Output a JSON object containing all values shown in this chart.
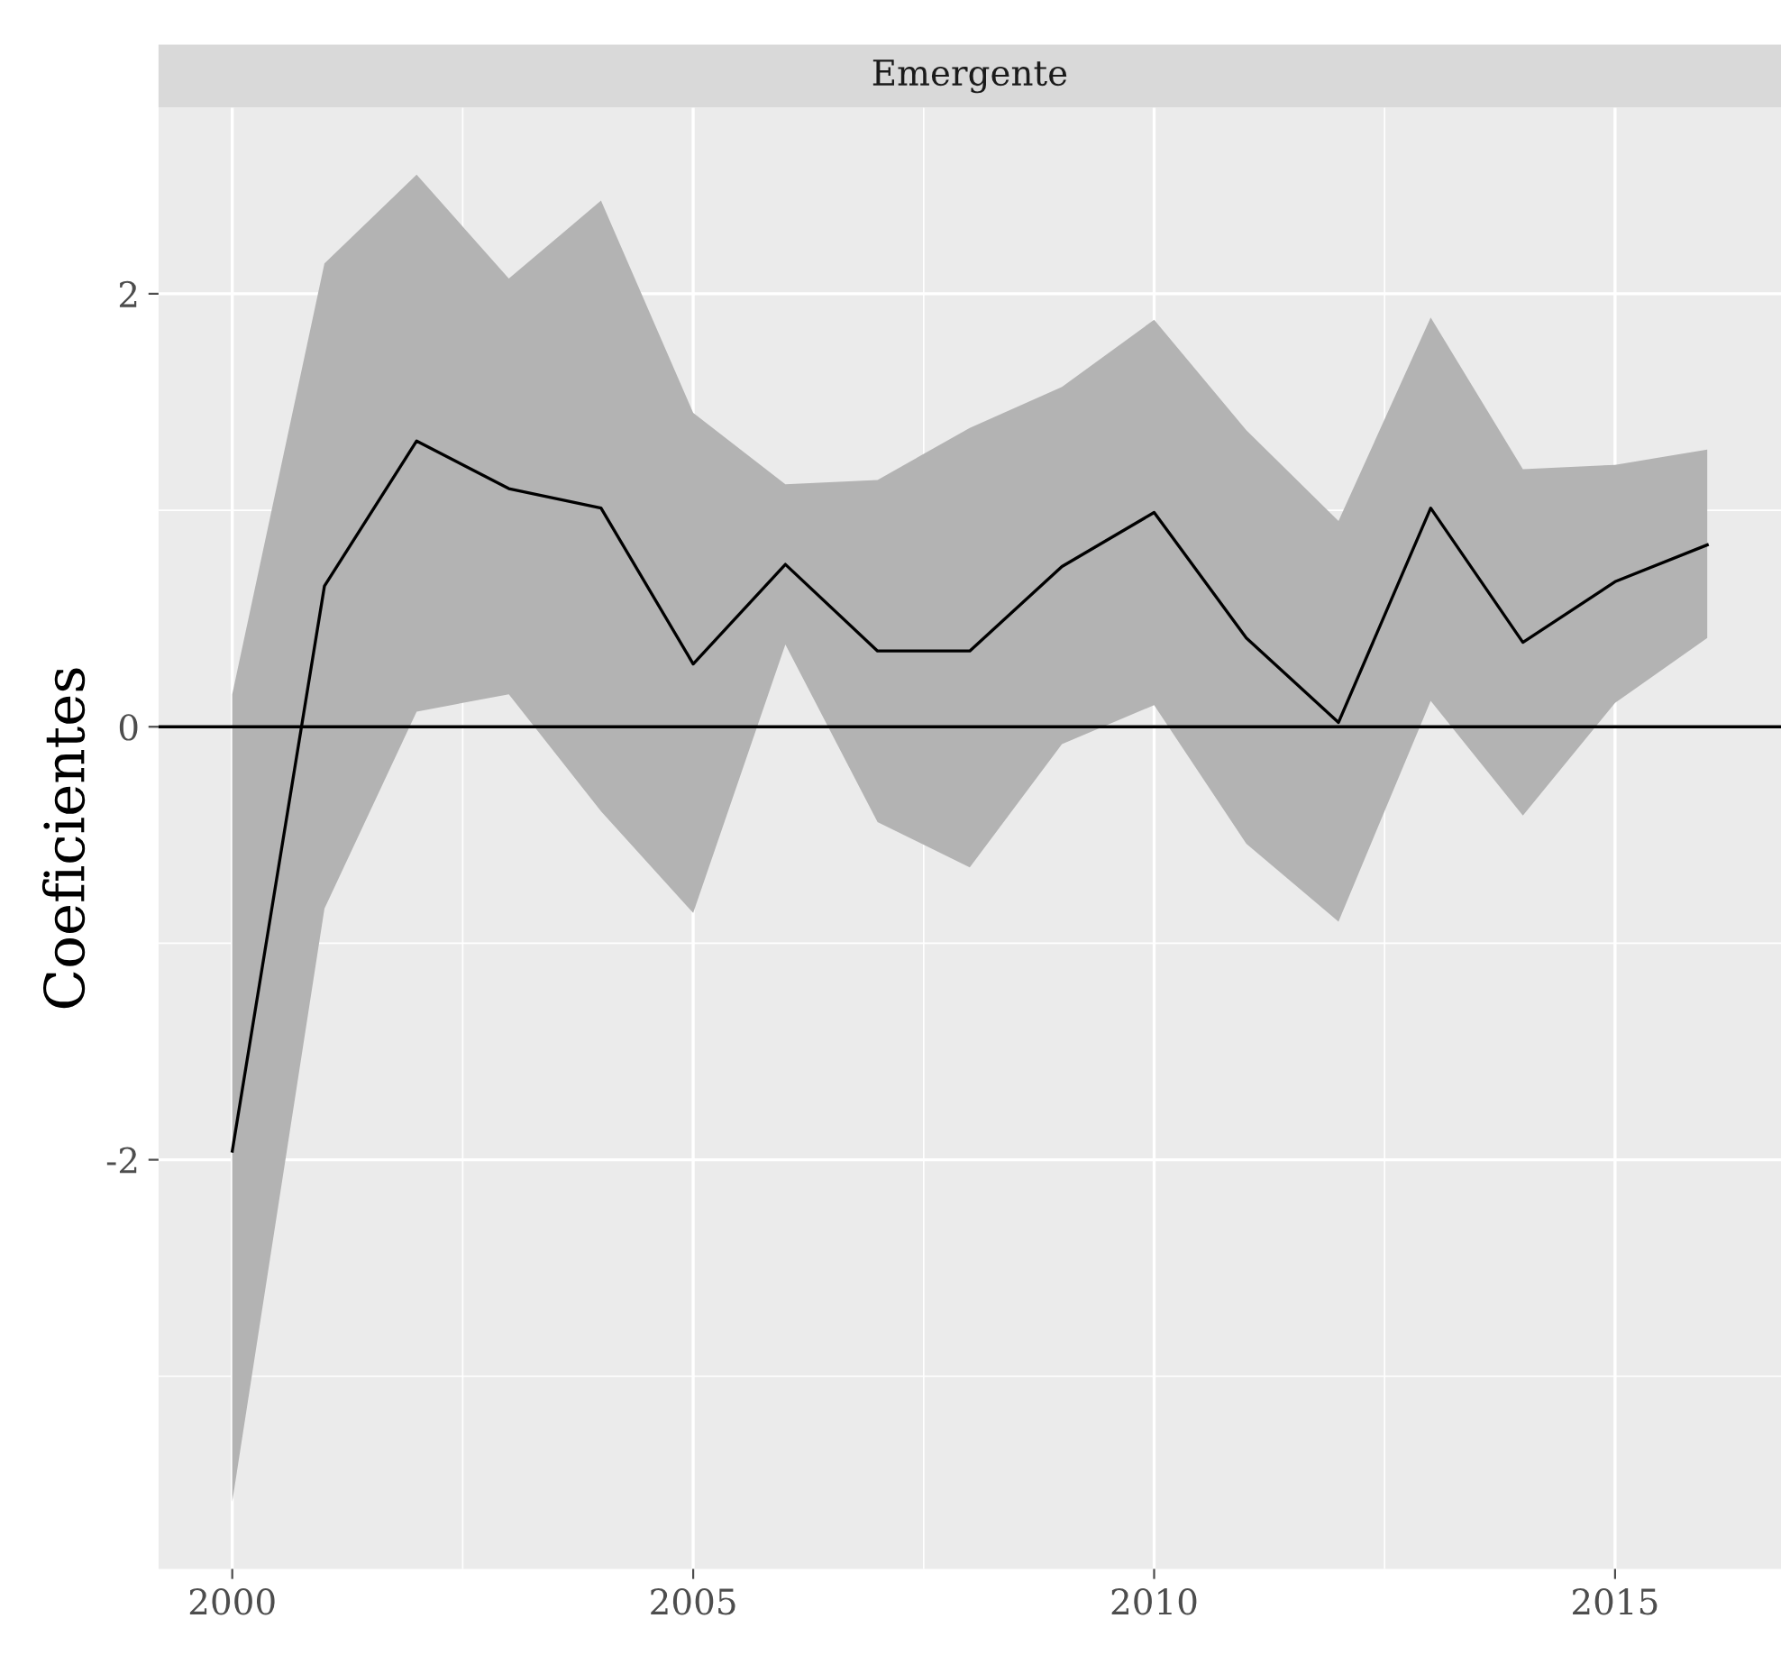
{
  "chart_data": {
    "type": "line",
    "title": "Emergente",
    "ylabel": "Coeficientes",
    "x": [
      2000,
      2001,
      2002,
      2003,
      2004,
      2005,
      2006,
      2007,
      2008,
      2009,
      2010,
      2011,
      2012,
      2013,
      2014,
      2015,
      2016
    ],
    "series": [
      {
        "color": "#000000",
        "values": [
          -1.96,
          0.65,
          1.32,
          1.1,
          1.01,
          0.29,
          0.75,
          0.35,
          0.35,
          0.74,
          0.99,
          0.41,
          0.02,
          1.01,
          0.39,
          0.67,
          0.84
        ],
        "lower": [
          -3.58,
          -0.84,
          0.07,
          0.15,
          -0.39,
          -0.86,
          0.38,
          -0.44,
          -0.65,
          -0.08,
          0.1,
          -0.54,
          -0.9,
          0.12,
          -0.41,
          0.11,
          0.41
        ],
        "upper": [
          0.15,
          2.14,
          2.55,
          2.07,
          2.43,
          1.45,
          1.12,
          1.14,
          1.38,
          1.57,
          1.88,
          1.37,
          0.95,
          1.89,
          1.19,
          1.21,
          1.28
        ]
      }
    ],
    "xlim": [
      1999.2,
      2016.8
    ],
    "ylim": [
      -3.89,
      2.86
    ],
    "xticks": [
      2000,
      2005,
      2010,
      2015
    ],
    "yticks": [
      {
        "value": -2,
        "label": "-2"
      },
      0,
      2
    ],
    "ref_lines": [
      {
        "axis": "y",
        "value": 0,
        "color": "#000000"
      }
    ],
    "grid": true,
    "legend": false
  }
}
